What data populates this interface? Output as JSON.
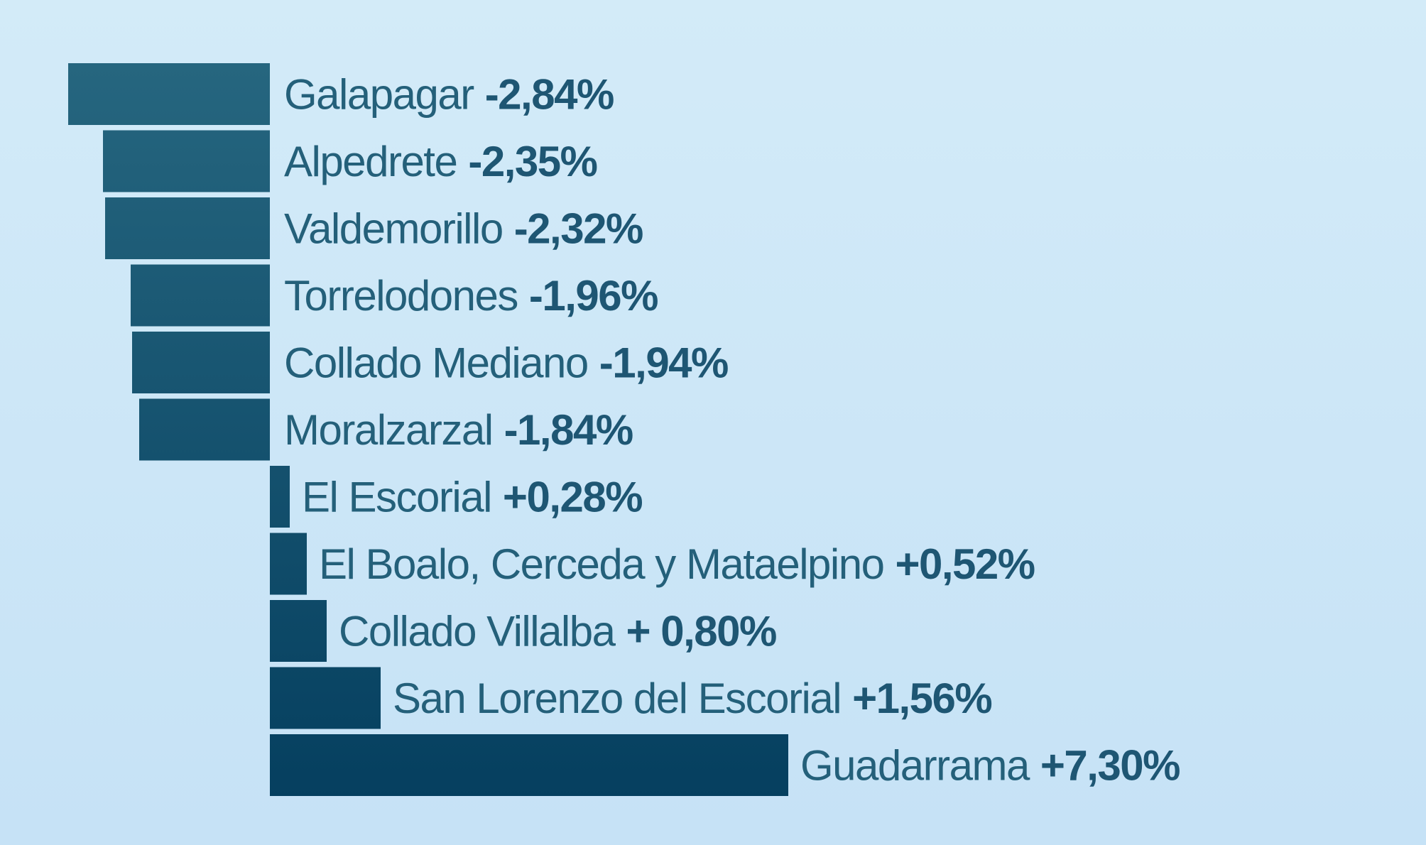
{
  "chart_data": {
    "type": "bar",
    "orientation": "horizontal",
    "title": "",
    "xlabel": "",
    "ylabel": "",
    "grid": false,
    "legend": "none",
    "categories": [
      "Galapagar",
      "Alpedrete",
      "Valdemorillo",
      "Torrelodones",
      "Collado Mediano",
      "Moralzarzal",
      "El Escorial",
      "El Boalo, Cerceda y Mataelpino",
      "Collado Villalba",
      "San Lorenzo del Escorial",
      "Guadarrama"
    ],
    "values": [
      -2.84,
      -2.35,
      -2.32,
      -1.96,
      -1.94,
      -1.84,
      0.28,
      0.52,
      0.8,
      1.56,
      7.3
    ],
    "value_labels": [
      "-2,84%",
      "-2,35%",
      "-2,32%",
      "-1,96%",
      "-1,94%",
      "-1,84%",
      "+0,28%",
      "+0,52%",
      "+ 0,80%",
      "+1,56%",
      "+7,30%"
    ],
    "colors": {
      "background_top": "#d3ebf8",
      "background_bottom": "#c6e2f6",
      "bar_light": "#26667f",
      "bar_dark": "#053f5f",
      "label_name": "#24607a",
      "label_value": "#1e5673"
    }
  }
}
